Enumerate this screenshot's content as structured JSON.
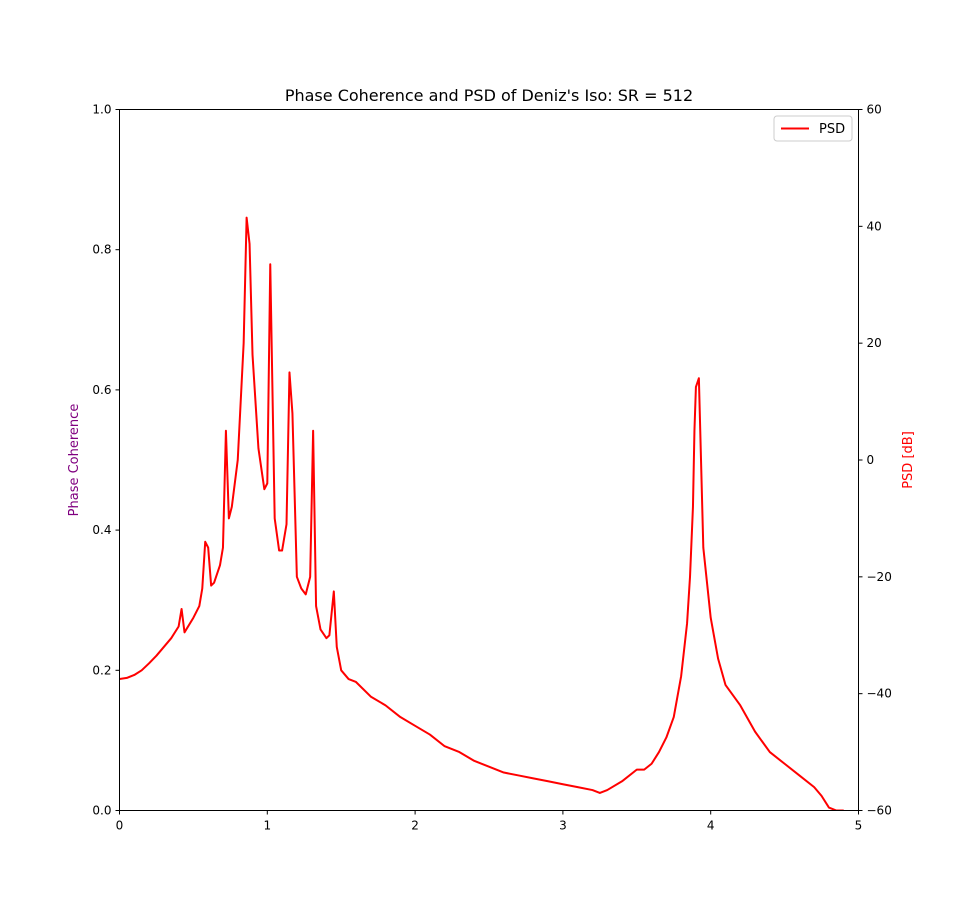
{
  "chart_data": {
    "type": "line",
    "title": "Phase Coherence and PSD of Deniz's Iso: SR = 512",
    "xlabel": "",
    "ylabel_left": "Phase Coherence",
    "ylabel_right": "PSD [dB]",
    "xlim": [
      0,
      5
    ],
    "ylim_left": [
      0,
      1
    ],
    "ylim_right": [
      -60,
      60
    ],
    "x_ticks": [
      "0",
      "1",
      "2",
      "3",
      "4",
      "5"
    ],
    "y_left_ticks": [
      "0.0",
      "0.2",
      "0.4",
      "0.6",
      "0.8",
      "1.0"
    ],
    "y_right_ticks": [
      "−60",
      "−40",
      "−20",
      "0",
      "20",
      "40",
      "60"
    ],
    "grid": false,
    "legend": {
      "placement": "top-right",
      "entries": [
        "PSD"
      ]
    },
    "colors": {
      "psd": "#ff0000",
      "left_label": "#800080",
      "right_label": "#ff0000",
      "axis": "#000000"
    },
    "series": [
      {
        "name": "PSD",
        "axis": "right",
        "x": [
          0.0,
          0.05,
          0.1,
          0.15,
          0.2,
          0.25,
          0.3,
          0.35,
          0.4,
          0.42,
          0.44,
          0.5,
          0.54,
          0.56,
          0.58,
          0.6,
          0.62,
          0.64,
          0.68,
          0.7,
          0.72,
          0.74,
          0.76,
          0.8,
          0.84,
          0.86,
          0.88,
          0.9,
          0.94,
          0.98,
          1.0,
          1.02,
          1.05,
          1.08,
          1.1,
          1.13,
          1.15,
          1.17,
          1.2,
          1.23,
          1.26,
          1.29,
          1.31,
          1.33,
          1.36,
          1.4,
          1.42,
          1.45,
          1.47,
          1.5,
          1.55,
          1.6,
          1.7,
          1.8,
          1.9,
          2.0,
          2.1,
          2.2,
          2.3,
          2.4,
          2.5,
          2.6,
          2.7,
          2.8,
          2.9,
          3.0,
          3.1,
          3.2,
          3.25,
          3.3,
          3.4,
          3.5,
          3.55,
          3.6,
          3.65,
          3.7,
          3.75,
          3.8,
          3.84,
          3.86,
          3.88,
          3.89,
          3.9,
          3.92,
          3.95,
          4.0,
          4.05,
          4.1,
          4.2,
          4.3,
          4.4,
          4.5,
          4.6,
          4.7,
          4.75,
          4.8,
          4.85,
          4.9
        ],
        "values": [
          -37.5,
          -37.3,
          -36.8,
          -36.0,
          -34.8,
          -33.5,
          -32.0,
          -30.5,
          -28.5,
          -25.5,
          -29.5,
          -27.0,
          -25.0,
          -22.0,
          -14.0,
          -15.0,
          -21.5,
          -21.0,
          -18.0,
          -15.0,
          5.0,
          -10.0,
          -8.0,
          0.0,
          20.0,
          41.5,
          37.0,
          18.0,
          2.0,
          -5.0,
          -4.0,
          33.5,
          -10.0,
          -15.5,
          -15.5,
          -11.0,
          15.0,
          8.0,
          -20.0,
          -22.0,
          -23.0,
          -20.0,
          5.0,
          -25.0,
          -29.0,
          -30.5,
          -30.0,
          -22.5,
          -32.0,
          -36.0,
          -37.5,
          -38.0,
          -40.5,
          -42.0,
          -44.0,
          -45.5,
          -47.0,
          -49.0,
          -50.0,
          -51.5,
          -52.5,
          -53.5,
          -54.0,
          -54.5,
          -55.0,
          -55.5,
          -56.0,
          -56.5,
          -57.0,
          -56.5,
          -55.0,
          -53.0,
          -53.0,
          -52.0,
          -50.0,
          -47.5,
          -44.0,
          -37.0,
          -28.0,
          -20.0,
          -8.0,
          5.0,
          12.5,
          14.0,
          -15.0,
          -27.0,
          -34.0,
          -38.5,
          -42.0,
          -46.5,
          -50.0,
          -52.0,
          -54.0,
          -56.0,
          -57.5,
          -59.5,
          -60.0,
          -60.0
        ]
      }
    ]
  }
}
